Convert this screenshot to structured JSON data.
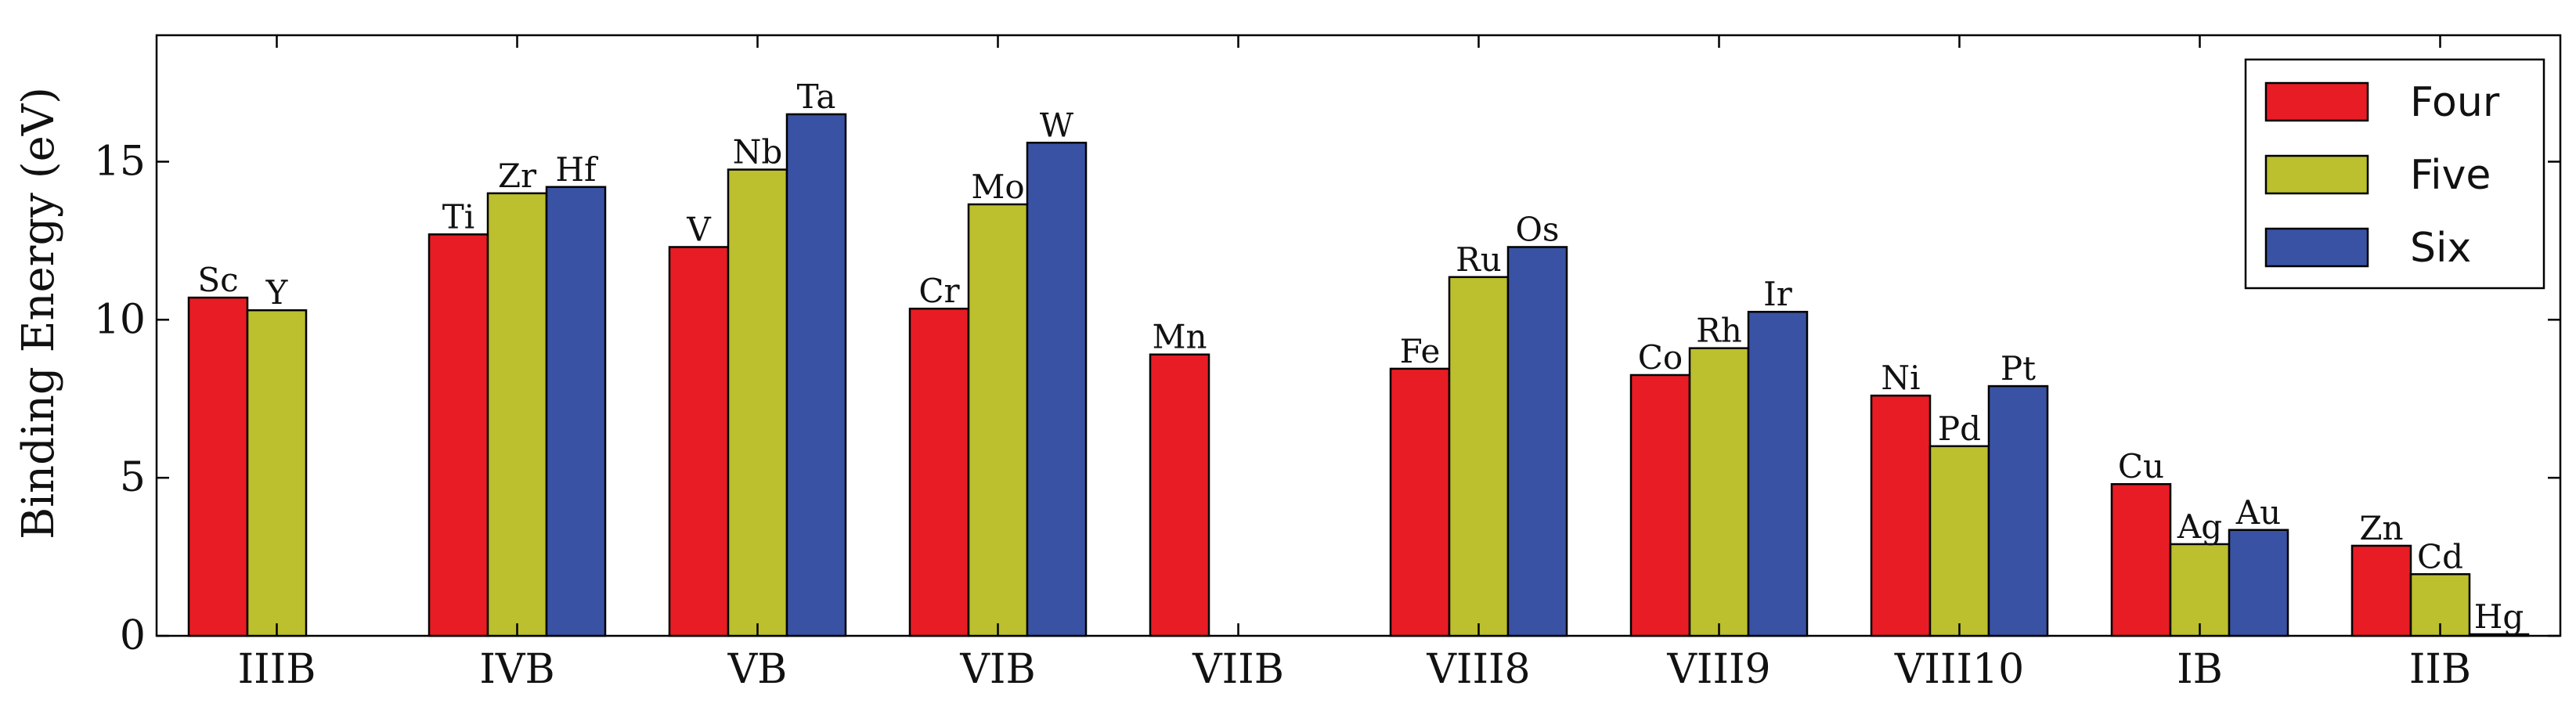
{
  "chart_data": {
    "type": "bar",
    "title": "",
    "xlabel": "",
    "ylabel": "Binding Energy (eV)",
    "ylim": [
      0,
      19
    ],
    "yticks": [
      0,
      5,
      10,
      15
    ],
    "categories": [
      "IIIB",
      "IVB",
      "VB",
      "VIB",
      "VIIB",
      "VIII8",
      "VIII9",
      "VIII10",
      "IB",
      "IIB"
    ],
    "legend_position": "top-right",
    "series": [
      {
        "name": "Four",
        "color": "#e81c24",
        "values": [
          10.7,
          12.7,
          12.3,
          10.35,
          8.9,
          8.45,
          8.25,
          7.6,
          4.8,
          2.85
        ],
        "labels": [
          "Sc",
          "Ti",
          "V",
          "Cr",
          "Mn",
          "Fe",
          "Co",
          "Ni",
          "Cu",
          "Zn"
        ]
      },
      {
        "name": "Five",
        "color": "#bcbf2e",
        "values": [
          10.3,
          14.0,
          14.75,
          13.65,
          null,
          11.35,
          9.1,
          6.0,
          2.9,
          1.95
        ],
        "labels": [
          "Y",
          "Zr",
          "Nb",
          "Mo",
          "",
          "Ru",
          "Rh",
          "Pd",
          "Ag",
          "Cd"
        ]
      },
      {
        "name": "Six",
        "color": "#3952a3",
        "values": [
          null,
          14.2,
          16.5,
          15.6,
          null,
          12.3,
          10.25,
          7.9,
          3.35,
          0.05
        ],
        "labels": [
          "",
          "Hf",
          "Ta",
          "W",
          "",
          "Os",
          "Ir",
          "Pt",
          "Au",
          "Hg"
        ]
      }
    ]
  }
}
